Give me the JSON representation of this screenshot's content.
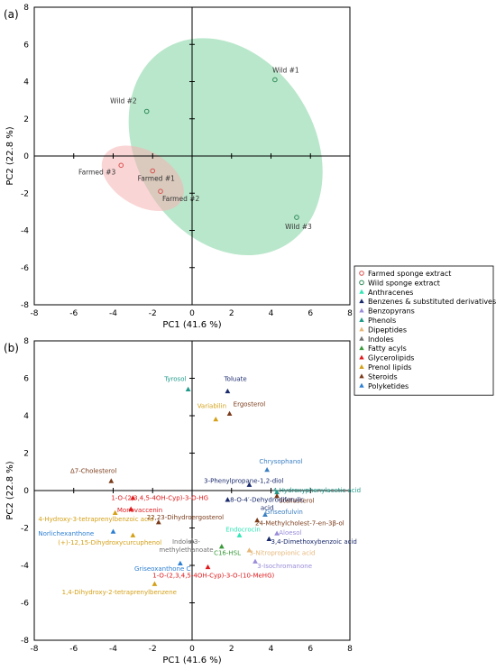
{
  "panels": [
    {
      "label": "(a)",
      "chart_data": {
        "type": "scatter",
        "xlabel": "PC1 (41.6 %)",
        "ylabel": "PC2 (22.8 %)",
        "xlim": [
          -8,
          8
        ],
        "ylim": [
          -8,
          8
        ],
        "xticks": [
          -8,
          -6,
          -4,
          -2,
          0,
          2,
          4,
          6,
          8
        ],
        "yticks": [
          -8,
          -6,
          -4,
          -2,
          0,
          2,
          4,
          6,
          8
        ],
        "ellipses": [
          {
            "group": "wild",
            "cx": 1.7,
            "cy": 0.5,
            "rx": 4.5,
            "ry": 6.2,
            "angle": -32,
            "color": "#7fd3a0"
          },
          {
            "group": "farmed",
            "cx": -2.5,
            "cy": -1.2,
            "rx": 1.4,
            "ry": 2.4,
            "angle": -60,
            "color": "#f6b3b3"
          }
        ],
        "series": [
          {
            "name": "Farmed sponge extract",
            "color": "#d9534f",
            "points": [
              {
                "label": "Farmed #3",
                "x": -3.6,
                "y": -0.5
              },
              {
                "label": "Farmed #1",
                "x": -2.0,
                "y": -0.8
              },
              {
                "label": "Farmed #2",
                "x": -1.6,
                "y": -1.9
              }
            ]
          },
          {
            "name": "Wild sponge extract",
            "color": "#2e8b57",
            "points": [
              {
                "label": "Wild #1",
                "x": 4.2,
                "y": 4.1
              },
              {
                "label": "Wild #2",
                "x": -2.3,
                "y": 2.4
              },
              {
                "label": "Wild #3",
                "x": 5.3,
                "y": -3.3
              }
            ]
          }
        ]
      }
    },
    {
      "label": "(b)",
      "chart_data": {
        "type": "scatter",
        "xlabel": "PC1 (41.6 %)",
        "ylabel": "PC2 (22.8 %)",
        "xlim": [
          -8,
          8
        ],
        "ylim": [
          -8,
          8
        ],
        "xticks": [
          -8,
          -6,
          -4,
          -2,
          0,
          2,
          4,
          6,
          8
        ],
        "yticks": [
          -8,
          -6,
          -4,
          -2,
          0,
          2,
          4,
          6,
          8
        ],
        "points": [
          {
            "label": "Tyrosol",
            "x": -0.2,
            "y": 5.4,
            "class": "Phenols",
            "color": "#1f9a8a",
            "lx": -0.3,
            "ly": 5.85,
            "anchor": "end"
          },
          {
            "label": "Toluate",
            "x": 1.8,
            "y": 5.3,
            "class": "Benzenes & substituted derivatives",
            "color": "#1a2a6c",
            "lx": 2.2,
            "ly": 5.85,
            "anchor": "middle"
          },
          {
            "label": "Variabilin",
            "x": 1.2,
            "y": 3.8,
            "class": "Prenol lipids",
            "color": "#d4a017",
            "lx": 1.0,
            "ly": 4.4,
            "anchor": "middle"
          },
          {
            "label": "Ergosterol",
            "x": 1.9,
            "y": 4.1,
            "class": "Steroids",
            "color": "#7a3b1a",
            "lx": 2.9,
            "ly": 4.5,
            "anchor": "middle"
          },
          {
            "label": "Chrysophanol",
            "x": 3.8,
            "y": 1.1,
            "class": "Anthracenes",
            "color": "#3a7fc1",
            "lx": 4.5,
            "ly": 1.45,
            "anchor": "middle"
          },
          {
            "label": "Δ7-Cholesterol",
            "x": -4.1,
            "y": 0.5,
            "class": "Steroids",
            "color": "#7a3b1a",
            "lx": -5.0,
            "ly": 0.95,
            "anchor": "middle"
          },
          {
            "label": "3-Phenylpropane-1,2-diol",
            "x": 2.9,
            "y": 0.3,
            "class": "Benzenes & substituted derivatives",
            "color": "#1a2a6c",
            "lx": 0.6,
            "ly": 0.4,
            "anchor": "start"
          },
          {
            "label": "4-Hydroxyphenylacetic acid",
            "x": 4.3,
            "y": -0.1,
            "class": "Phenols",
            "color": "#1f9a8a",
            "lx": 4.1,
            "ly": -0.1,
            "anchor": "start"
          },
          {
            "label": "Stellasterol",
            "x": 4.3,
            "y": -0.3,
            "class": "Steroids",
            "color": "#7a3b1a",
            "lx": 4.4,
            "ly": -0.65,
            "anchor": "start"
          },
          {
            "label": "1-O-(2,3,4,5-4OH-Cyp)-3-O-HG",
            "x": -3.0,
            "y": -0.4,
            "class": "Glycerolipids",
            "color": "#e0191c",
            "lx": -4.1,
            "ly": -0.5,
            "anchor": "start"
          },
          {
            "label": "Monovaccenin",
            "x": -3.1,
            "y": -1.0,
            "class": "Glycerolipids",
            "color": "#e0191c",
            "lx": -3.8,
            "ly": -1.15,
            "anchor": "start"
          },
          {
            "label": "4-Hydroxy-3-tetraprenylbenzoic acid",
            "x": -3.9,
            "y": -1.2,
            "class": "Prenol lipids",
            "color": "#d4a017",
            "lx": -7.8,
            "ly": -1.65,
            "anchor": "start"
          },
          {
            "label": "22,23-Dihydroergosterol",
            "x": -1.7,
            "y": -1.7,
            "class": "Steroids",
            "color": "#7a3b1a",
            "lx": -2.3,
            "ly": -1.55,
            "anchor": "start"
          },
          {
            "label": "8-O-4′-Dehydrodiferulic acid",
            "x": 1.8,
            "y": -0.5,
            "class": "Benzenes & substituted derivatives",
            "color": "#1a2a6c",
            "lx": 3.8,
            "ly": -0.6,
            "anchor": "middle",
            "lines": [
              "8-O-4′-Dehydrodiferulic",
              "acid"
            ]
          },
          {
            "label": "24-Methylcholest-7-en-3β-ol",
            "x": 3.3,
            "y": -1.6,
            "class": "Steroids",
            "color": "#7a3b1a",
            "lx": 3.2,
            "ly": -1.85,
            "anchor": "start"
          },
          {
            "label": "Griseofulvin",
            "x": 3.7,
            "y": -1.3,
            "class": "Benzopyrans",
            "color": "#3a7fc1",
            "lx": 3.7,
            "ly": -1.25,
            "anchor": "start"
          },
          {
            "label": "Endocrocin",
            "x": 2.4,
            "y": -2.4,
            "class": "Anthracenes",
            "color": "#2ee6b5",
            "lx": 1.7,
            "ly": -2.2,
            "anchor": "start"
          },
          {
            "label": "Aloesol",
            "x": 4.3,
            "y": -2.3,
            "class": "Benzopyrans",
            "color": "#9b8cd9",
            "lx": 4.4,
            "ly": -2.35,
            "anchor": "start"
          },
          {
            "label": "Norlichexanthone",
            "x": -4.0,
            "y": -2.2,
            "class": "Polyketides",
            "color": "#2d7fd2",
            "lx": -7.8,
            "ly": -2.4,
            "anchor": "start"
          },
          {
            "label": "(+)-12,15-Dihydroxycurcuphenol",
            "x": -3.0,
            "y": -2.4,
            "class": "Prenol lipids",
            "color": "#d4a017",
            "lx": -6.8,
            "ly": -2.9,
            "anchor": "start"
          },
          {
            "label": "3,4-Dimethoxybenzoic acid",
            "x": 3.9,
            "y": -2.6,
            "class": "Benzenes & substituted derivatives",
            "color": "#1a2a6c",
            "lx": 4.0,
            "ly": -2.85,
            "anchor": "start"
          },
          {
            "label": "Indole-3-methylethanoate",
            "x": 0.0,
            "y": -2.7,
            "class": "Indoles",
            "color": "#707070",
            "lx": -0.3,
            "ly": -2.85,
            "anchor": "middle",
            "lines": [
              "Indole-3-",
              "methylethanoate"
            ]
          },
          {
            "label": "C16-HSL",
            "x": 1.5,
            "y": -3.0,
            "class": "Fatty acyls",
            "color": "#3a9a3a",
            "lx": 1.1,
            "ly": -3.45,
            "anchor": "start"
          },
          {
            "label": "3-Nitropropionic acid",
            "x": 2.9,
            "y": -3.2,
            "class": "Dipeptides",
            "color": "#e6b87a",
            "lx": 2.9,
            "ly": -3.45,
            "anchor": "start"
          },
          {
            "label": "3-Isochromanone",
            "x": 3.2,
            "y": -3.8,
            "class": "Benzopyrans",
            "color": "#9b8cd9",
            "lx": 3.3,
            "ly": -4.15,
            "anchor": "start"
          },
          {
            "label": "Griseoxanthone C",
            "x": -0.6,
            "y": -3.9,
            "class": "Polyketides",
            "color": "#2d7fd2",
            "lx": -1.5,
            "ly": -4.3,
            "anchor": "middle"
          },
          {
            "label": "1-O-(2,3,4,5-4OH-Cyp)-3-O-(10-MeHG)",
            "x": 0.8,
            "y": -4.1,
            "class": "Glycerolipids",
            "color": "#e0191c",
            "lx": -2.0,
            "ly": -4.65,
            "anchor": "start"
          },
          {
            "label": "1,4-Dihydroxy-2-tetraprenylbenzene",
            "x": -1.9,
            "y": -5.0,
            "class": "Prenol lipids",
            "color": "#d4a017",
            "lx": -6.6,
            "ly": -5.55,
            "anchor": "start"
          }
        ]
      }
    }
  ],
  "legend": {
    "placement": "right",
    "entries": [
      {
        "name": "Farmed sponge extract",
        "marker": "circle",
        "color": "#d9534f"
      },
      {
        "name": "Wild sponge extract",
        "marker": "circle",
        "color": "#2e8b57"
      },
      {
        "name": "Anthracenes",
        "marker": "triangle",
        "color": "#2ee6b5"
      },
      {
        "name": "Benzenes & substituted derivatives",
        "marker": "triangle",
        "color": "#1a2a6c"
      },
      {
        "name": "Benzopyrans",
        "marker": "triangle",
        "color": "#9b8cd9"
      },
      {
        "name": "Phenols",
        "marker": "triangle",
        "color": "#1f9a8a"
      },
      {
        "name": "Dipeptides",
        "marker": "triangle",
        "color": "#e6b87a"
      },
      {
        "name": "Indoles",
        "marker": "triangle",
        "color": "#707070"
      },
      {
        "name": "Fatty acyls",
        "marker": "triangle",
        "color": "#3a9a3a"
      },
      {
        "name": "Glycerolipids",
        "marker": "triangle",
        "color": "#e0191c"
      },
      {
        "name": "Prenol lipids",
        "marker": "triangle",
        "color": "#d4a017"
      },
      {
        "name": "Steroids",
        "marker": "triangle",
        "color": "#7a3b1a"
      },
      {
        "name": "Polyketides",
        "marker": "triangle",
        "color": "#2d7fd2"
      }
    ]
  }
}
